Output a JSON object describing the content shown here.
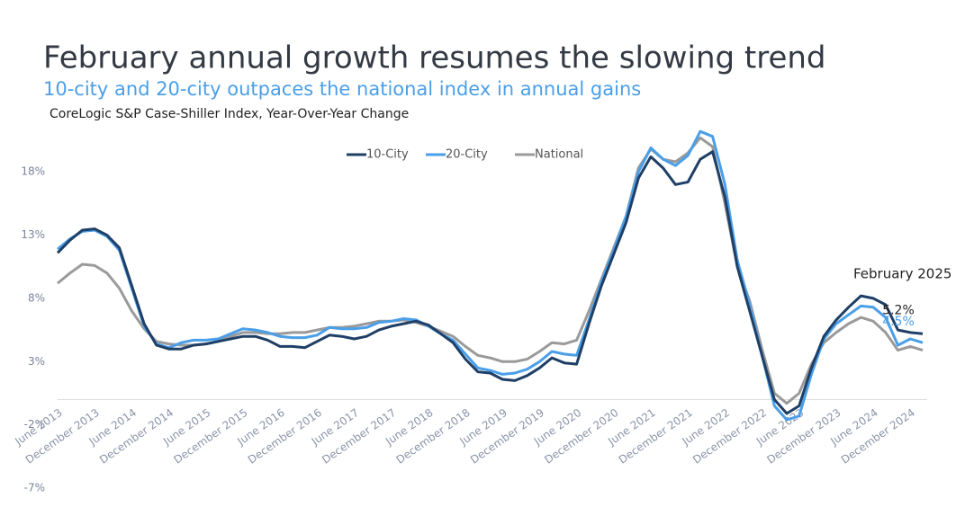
{
  "chart_data": {
    "type": "line",
    "title": "February annual growth resumes the slowing trend",
    "subtitle": "10-city and 20-city outpaces the national index in annual gains",
    "source": "CoreLogic S&P Case-Shiller Index, Year-Over-Year Change",
    "annotation": "February 2025",
    "categories": [
      "June 2013",
      null,
      null,
      "December 2013",
      null,
      null,
      "June 2014",
      null,
      null,
      "December 2014",
      null,
      null,
      "June 2015",
      null,
      null,
      "December 2015",
      null,
      null,
      "June 2016",
      null,
      null,
      "December 2016",
      null,
      null,
      "June 2017",
      null,
      null,
      "December 2017",
      null,
      null,
      "June 2018",
      null,
      null,
      "December 2018",
      null,
      null,
      "June 2019",
      null,
      null,
      "December 2019",
      null,
      null,
      "June 2020",
      null,
      null,
      "December 2020",
      null,
      null,
      "June 2021",
      null,
      null,
      "December 2021",
      null,
      null,
      "June 2022",
      null,
      null,
      "December 2022",
      null,
      null,
      "June 2023",
      null,
      null,
      "December 2023",
      null,
      null,
      "June 2024",
      null,
      null,
      "December 2024",
      null
    ],
    "series": [
      {
        "name": "10-City",
        "color": "#1f3f66",
        "values": [
          11.6,
          12.6,
          13.4,
          13.5,
          13.0,
          12.0,
          9.0,
          6.0,
          4.3,
          4.0,
          4.0,
          4.3,
          4.4,
          4.6,
          4.8,
          5.0,
          5.0,
          4.7,
          4.2,
          4.2,
          4.1,
          4.6,
          5.1,
          5.0,
          4.8,
          5.0,
          5.5,
          5.8,
          6.0,
          6.2,
          5.9,
          5.2,
          4.5,
          3.2,
          2.2,
          2.1,
          1.6,
          1.5,
          1.9,
          2.5,
          3.3,
          2.9,
          2.8,
          6.0,
          9.0,
          11.5,
          14.0,
          17.5,
          19.2,
          18.3,
          17.0,
          17.2,
          19.0,
          19.6,
          16.0,
          10.5,
          7.0,
          3.5,
          0.0,
          -1.1,
          -0.5,
          2.5,
          5.0,
          6.3,
          7.3,
          8.2,
          8.0,
          7.5,
          5.5,
          5.3,
          5.2
        ]
      },
      {
        "name": "20-City",
        "color": "#4a9fe8",
        "values": [
          11.9,
          12.7,
          13.3,
          13.4,
          12.9,
          11.8,
          8.8,
          5.8,
          4.4,
          4.1,
          4.5,
          4.7,
          4.7,
          4.8,
          5.2,
          5.6,
          5.5,
          5.3,
          5.0,
          4.9,
          4.9,
          5.1,
          5.7,
          5.6,
          5.6,
          5.7,
          6.1,
          6.2,
          6.4,
          6.3,
          5.8,
          5.2,
          4.7,
          3.6,
          2.5,
          2.3,
          2.0,
          2.1,
          2.4,
          3.0,
          3.8,
          3.6,
          3.5,
          6.3,
          9.3,
          11.8,
          14.5,
          18.0,
          19.9,
          19.0,
          18.5,
          19.3,
          21.2,
          20.8,
          17.0,
          11.0,
          7.5,
          3.5,
          -0.5,
          -1.6,
          -1.3,
          2.0,
          4.8,
          6.0,
          6.7,
          7.4,
          7.3,
          6.5,
          4.3,
          4.8,
          4.5
        ]
      },
      {
        "name": "National",
        "color": "#9a9a9a",
        "values": [
          9.2,
          10.0,
          10.7,
          10.6,
          10.0,
          8.8,
          7.0,
          5.6,
          4.6,
          4.4,
          4.3,
          4.3,
          4.4,
          4.6,
          5.0,
          5.3,
          5.3,
          5.2,
          5.2,
          5.3,
          5.3,
          5.5,
          5.7,
          5.7,
          5.8,
          6.0,
          6.2,
          6.2,
          6.3,
          6.1,
          5.8,
          5.4,
          5.0,
          4.2,
          3.5,
          3.3,
          3.0,
          3.0,
          3.2,
          3.8,
          4.5,
          4.4,
          4.7,
          7.0,
          9.5,
          12.0,
          14.5,
          18.3,
          19.8,
          19.0,
          18.8,
          19.5,
          20.7,
          20.0,
          15.5,
          10.5,
          7.8,
          4.0,
          0.5,
          -0.3,
          0.5,
          2.8,
          4.5,
          5.3,
          6.0,
          6.5,
          6.2,
          5.3,
          3.9,
          4.2,
          3.9
        ]
      }
    ],
    "end_labels": [
      {
        "series": 0,
        "value": 5.2,
        "label": "5.2%"
      },
      {
        "series": 1,
        "value": 4.5,
        "label": "4.5%"
      }
    ],
    "ylim": [
      -7,
      21.5
    ],
    "yticks": [
      {
        "value": -7,
        "label": "-7%"
      },
      {
        "value": -2,
        "label": "-2%"
      },
      {
        "value": 3,
        "label": "3%"
      },
      {
        "value": 8,
        "label": "8%"
      },
      {
        "value": 13,
        "label": "13%"
      },
      {
        "value": 18,
        "label": "18%"
      }
    ],
    "grid": false,
    "legend": "top"
  }
}
